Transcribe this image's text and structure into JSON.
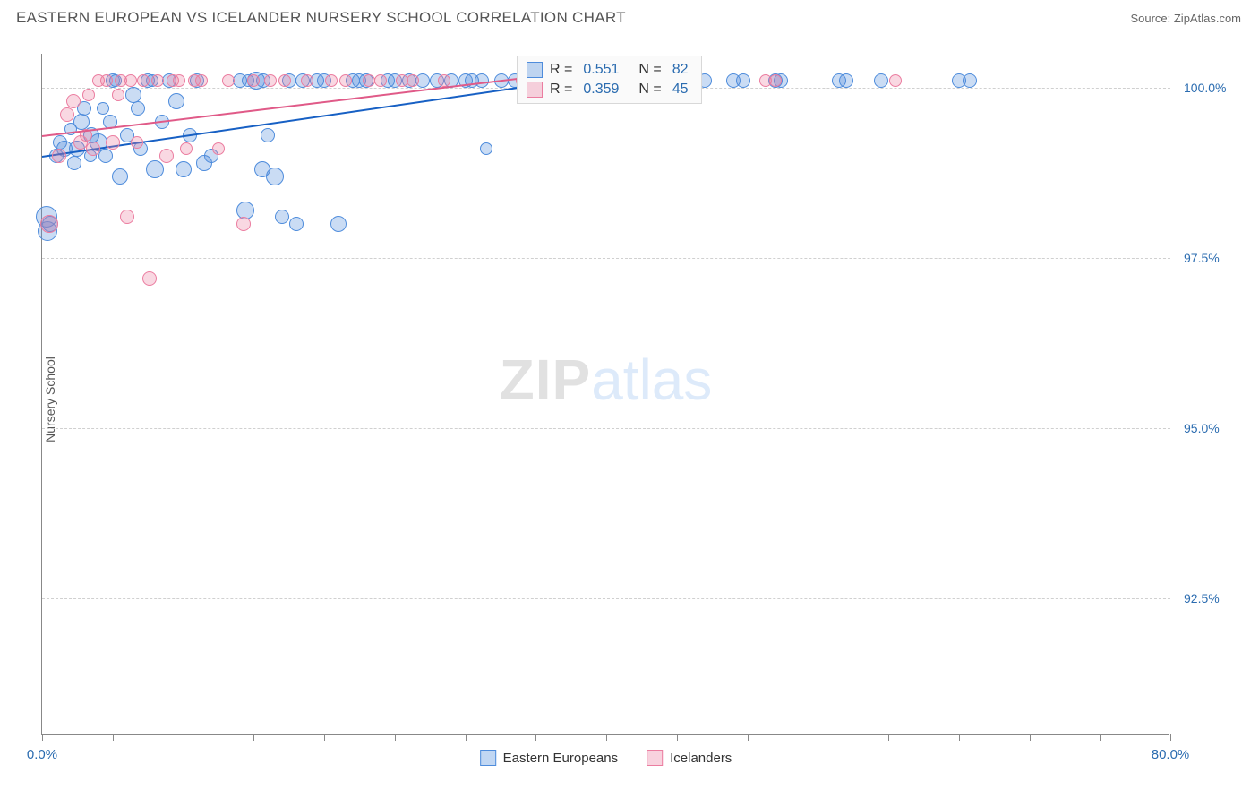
{
  "header": {
    "title": "EASTERN EUROPEAN VS ICELANDER NURSERY SCHOOL CORRELATION CHART",
    "source": "Source: ZipAtlas.com"
  },
  "chart": {
    "type": "scatter",
    "ylabel": "Nursery School",
    "xlim": [
      0,
      80
    ],
    "ylim": [
      90.5,
      100.5
    ],
    "xtick_step": 5,
    "xticks_labeled": [
      {
        "value": 0,
        "label": "0.0%"
      },
      {
        "value": 80,
        "label": "80.0%"
      }
    ],
    "yticks": [
      {
        "value": 92.5,
        "label": "92.5%"
      },
      {
        "value": 95.0,
        "label": "95.0%"
      },
      {
        "value": 97.5,
        "label": "97.5%"
      },
      {
        "value": 100.0,
        "label": "100.0%"
      }
    ],
    "grid_color": "#d0d0d0",
    "background_color": "#ffffff",
    "axis_color": "#888888",
    "tick_label_color": "#2b6cb0",
    "watermark": {
      "zip": "ZIP",
      "atlas": "atlas"
    },
    "series": [
      {
        "name": "Eastern Europeans",
        "fill": "rgba(78,140,220,0.30)",
        "stroke": "#4e8cdc",
        "trend_color": "#1760c4",
        "trend": {
          "x1": 0,
          "y1": 99.0,
          "x2": 40,
          "y2": 100.2
        },
        "R": "0.551",
        "N": "82",
        "points": [
          {
            "x": 0.3,
            "y": 98.1,
            "r": 12
          },
          {
            "x": 0.6,
            "y": 98.0,
            "r": 9
          },
          {
            "x": 0.4,
            "y": 97.9,
            "r": 11
          },
          {
            "x": 1.0,
            "y": 99.0,
            "r": 8
          },
          {
            "x": 1.3,
            "y": 99.2,
            "r": 8
          },
          {
            "x": 1.6,
            "y": 99.1,
            "r": 9
          },
          {
            "x": 2.0,
            "y": 99.4,
            "r": 7
          },
          {
            "x": 2.3,
            "y": 98.9,
            "r": 8
          },
          {
            "x": 2.8,
            "y": 99.5,
            "r": 9
          },
          {
            "x": 2.5,
            "y": 99.1,
            "r": 9
          },
          {
            "x": 3.0,
            "y": 99.7,
            "r": 8
          },
          {
            "x": 3.5,
            "y": 99.3,
            "r": 9
          },
          {
            "x": 3.4,
            "y": 99.0,
            "r": 7
          },
          {
            "x": 4.0,
            "y": 99.2,
            "r": 10
          },
          {
            "x": 4.5,
            "y": 99.0,
            "r": 8
          },
          {
            "x": 4.3,
            "y": 99.7,
            "r": 7
          },
          {
            "x": 5.0,
            "y": 100.1,
            "r": 8
          },
          {
            "x": 4.8,
            "y": 99.5,
            "r": 8
          },
          {
            "x": 5.5,
            "y": 98.7,
            "r": 9
          },
          {
            "x": 5.2,
            "y": 100.1,
            "r": 7
          },
          {
            "x": 6.0,
            "y": 99.3,
            "r": 8
          },
          {
            "x": 6.5,
            "y": 99.9,
            "r": 9
          },
          {
            "x": 6.8,
            "y": 99.7,
            "r": 8
          },
          {
            "x": 7.0,
            "y": 99.1,
            "r": 8
          },
          {
            "x": 7.5,
            "y": 100.1,
            "r": 8
          },
          {
            "x": 7.8,
            "y": 100.1,
            "r": 7
          },
          {
            "x": 8.0,
            "y": 98.8,
            "r": 10
          },
          {
            "x": 8.5,
            "y": 99.5,
            "r": 8
          },
          {
            "x": 9.0,
            "y": 100.1,
            "r": 8
          },
          {
            "x": 9.5,
            "y": 99.8,
            "r": 9
          },
          {
            "x": 10.0,
            "y": 98.8,
            "r": 9
          },
          {
            "x": 10.5,
            "y": 99.3,
            "r": 8
          },
          {
            "x": 11.0,
            "y": 100.1,
            "r": 8
          },
          {
            "x": 11.5,
            "y": 98.9,
            "r": 9
          },
          {
            "x": 12.0,
            "y": 99.0,
            "r": 8
          },
          {
            "x": 14.0,
            "y": 100.1,
            "r": 8
          },
          {
            "x": 14.4,
            "y": 98.2,
            "r": 10
          },
          {
            "x": 14.6,
            "y": 100.1,
            "r": 7
          },
          {
            "x": 15.2,
            "y": 100.1,
            "r": 10
          },
          {
            "x": 15.7,
            "y": 100.1,
            "r": 8
          },
          {
            "x": 15.6,
            "y": 98.8,
            "r": 9
          },
          {
            "x": 16.0,
            "y": 99.3,
            "r": 8
          },
          {
            "x": 16.5,
            "y": 98.7,
            "r": 10
          },
          {
            "x": 17.0,
            "y": 98.1,
            "r": 8
          },
          {
            "x": 17.5,
            "y": 100.1,
            "r": 8
          },
          {
            "x": 18.5,
            "y": 100.1,
            "r": 8
          },
          {
            "x": 18.0,
            "y": 98.0,
            "r": 8
          },
          {
            "x": 19.5,
            "y": 100.1,
            "r": 8
          },
          {
            "x": 20.0,
            "y": 100.1,
            "r": 8
          },
          {
            "x": 21.0,
            "y": 98.0,
            "r": 9
          },
          {
            "x": 22.0,
            "y": 100.1,
            "r": 8
          },
          {
            "x": 22.5,
            "y": 100.1,
            "r": 8
          },
          {
            "x": 23.0,
            "y": 100.1,
            "r": 8
          },
          {
            "x": 24.5,
            "y": 100.1,
            "r": 8
          },
          {
            "x": 25.0,
            "y": 100.1,
            "r": 8
          },
          {
            "x": 26.0,
            "y": 100.1,
            "r": 8
          },
          {
            "x": 27.0,
            "y": 100.1,
            "r": 8
          },
          {
            "x": 28.0,
            "y": 100.1,
            "r": 8
          },
          {
            "x": 29.0,
            "y": 100.1,
            "r": 8
          },
          {
            "x": 30.0,
            "y": 100.1,
            "r": 8
          },
          {
            "x": 30.5,
            "y": 100.1,
            "r": 8
          },
          {
            "x": 31.2,
            "y": 100.1,
            "r": 8
          },
          {
            "x": 31.5,
            "y": 99.1,
            "r": 7
          },
          {
            "x": 32.6,
            "y": 100.1,
            "r": 8
          },
          {
            "x": 33.5,
            "y": 100.1,
            "r": 8
          },
          {
            "x": 37.5,
            "y": 100.1,
            "r": 8
          },
          {
            "x": 38.1,
            "y": 100.1,
            "r": 8
          },
          {
            "x": 40.0,
            "y": 100.1,
            "r": 8
          },
          {
            "x": 42.0,
            "y": 100.1,
            "r": 8
          },
          {
            "x": 43.3,
            "y": 100.1,
            "r": 8
          },
          {
            "x": 44.1,
            "y": 100.1,
            "r": 8
          },
          {
            "x": 46.0,
            "y": 100.1,
            "r": 8
          },
          {
            "x": 47.0,
            "y": 100.1,
            "r": 8
          },
          {
            "x": 49.0,
            "y": 100.1,
            "r": 8
          },
          {
            "x": 49.7,
            "y": 100.1,
            "r": 8
          },
          {
            "x": 52.0,
            "y": 100.1,
            "r": 8
          },
          {
            "x": 52.4,
            "y": 100.1,
            "r": 8
          },
          {
            "x": 56.5,
            "y": 100.1,
            "r": 8
          },
          {
            "x": 57.0,
            "y": 100.1,
            "r": 8
          },
          {
            "x": 59.5,
            "y": 100.1,
            "r": 8
          },
          {
            "x": 65.0,
            "y": 100.1,
            "r": 8
          },
          {
            "x": 65.8,
            "y": 100.1,
            "r": 8
          }
        ]
      },
      {
        "name": "Icelanders",
        "fill": "rgba(235,125,160,0.30)",
        "stroke": "#eb7da0",
        "trend_color": "#e05a88",
        "trend": {
          "x1": 0,
          "y1": 99.3,
          "x2": 40,
          "y2": 100.3
        },
        "R": "0.359",
        "N": "45",
        "points": [
          {
            "x": 0.5,
            "y": 98.0,
            "r": 10
          },
          {
            "x": 1.2,
            "y": 99.0,
            "r": 8
          },
          {
            "x": 1.8,
            "y": 99.6,
            "r": 8
          },
          {
            "x": 2.2,
            "y": 99.8,
            "r": 8
          },
          {
            "x": 2.7,
            "y": 99.2,
            "r": 8
          },
          {
            "x": 3.1,
            "y": 99.3,
            "r": 7
          },
          {
            "x": 3.3,
            "y": 99.9,
            "r": 7
          },
          {
            "x": 3.6,
            "y": 99.1,
            "r": 8
          },
          {
            "x": 4.0,
            "y": 100.1,
            "r": 7
          },
          {
            "x": 4.6,
            "y": 100.1,
            "r": 7
          },
          {
            "x": 5.0,
            "y": 99.2,
            "r": 8
          },
          {
            "x": 5.4,
            "y": 99.9,
            "r": 7
          },
          {
            "x": 5.6,
            "y": 100.1,
            "r": 7
          },
          {
            "x": 6.0,
            "y": 98.1,
            "r": 8
          },
          {
            "x": 6.3,
            "y": 100.1,
            "r": 7
          },
          {
            "x": 6.7,
            "y": 99.2,
            "r": 7
          },
          {
            "x": 7.2,
            "y": 100.1,
            "r": 7
          },
          {
            "x": 7.6,
            "y": 97.2,
            "r": 8
          },
          {
            "x": 8.2,
            "y": 100.1,
            "r": 7
          },
          {
            "x": 8.8,
            "y": 99.0,
            "r": 8
          },
          {
            "x": 9.3,
            "y": 100.1,
            "r": 7
          },
          {
            "x": 9.7,
            "y": 100.1,
            "r": 7
          },
          {
            "x": 10.2,
            "y": 99.1,
            "r": 7
          },
          {
            "x": 10.8,
            "y": 100.1,
            "r": 7
          },
          {
            "x": 11.3,
            "y": 100.1,
            "r": 7
          },
          {
            "x": 12.5,
            "y": 99.1,
            "r": 7
          },
          {
            "x": 13.2,
            "y": 100.1,
            "r": 7
          },
          {
            "x": 14.3,
            "y": 98.0,
            "r": 8
          },
          {
            "x": 15.0,
            "y": 100.1,
            "r": 7
          },
          {
            "x": 16.2,
            "y": 100.1,
            "r": 7
          },
          {
            "x": 17.2,
            "y": 100.1,
            "r": 7
          },
          {
            "x": 18.8,
            "y": 100.1,
            "r": 7
          },
          {
            "x": 20.5,
            "y": 100.1,
            "r": 7
          },
          {
            "x": 21.5,
            "y": 100.1,
            "r": 7
          },
          {
            "x": 23.2,
            "y": 100.1,
            "r": 7
          },
          {
            "x": 24.0,
            "y": 100.1,
            "r": 7
          },
          {
            "x": 25.5,
            "y": 100.1,
            "r": 7
          },
          {
            "x": 26.3,
            "y": 100.1,
            "r": 7
          },
          {
            "x": 28.5,
            "y": 100.1,
            "r": 7
          },
          {
            "x": 34.0,
            "y": 100.1,
            "r": 7
          },
          {
            "x": 36.5,
            "y": 100.1,
            "r": 7
          },
          {
            "x": 41.0,
            "y": 100.1,
            "r": 7
          },
          {
            "x": 51.3,
            "y": 100.1,
            "r": 7
          },
          {
            "x": 52.0,
            "y": 100.1,
            "r": 7
          },
          {
            "x": 60.5,
            "y": 100.1,
            "r": 7
          }
        ]
      }
    ],
    "legend_box": {
      "rows": [
        {
          "swatch_fill": "rgba(78,140,220,0.35)",
          "swatch_stroke": "#4e8cdc",
          "R_label": "R =",
          "R_val": "0.551",
          "N_label": "N =",
          "N_val": "82"
        },
        {
          "swatch_fill": "rgba(235,125,160,0.35)",
          "swatch_stroke": "#eb7da0",
          "R_label": "R =",
          "R_val": "0.359",
          "N_label": "N =",
          "N_val": "45"
        }
      ]
    },
    "bottom_legend": [
      {
        "swatch_fill": "rgba(78,140,220,0.35)",
        "swatch_stroke": "#4e8cdc",
        "label": "Eastern Europeans"
      },
      {
        "swatch_fill": "rgba(235,125,160,0.35)",
        "swatch_stroke": "#eb7da0",
        "label": "Icelanders"
      }
    ]
  }
}
